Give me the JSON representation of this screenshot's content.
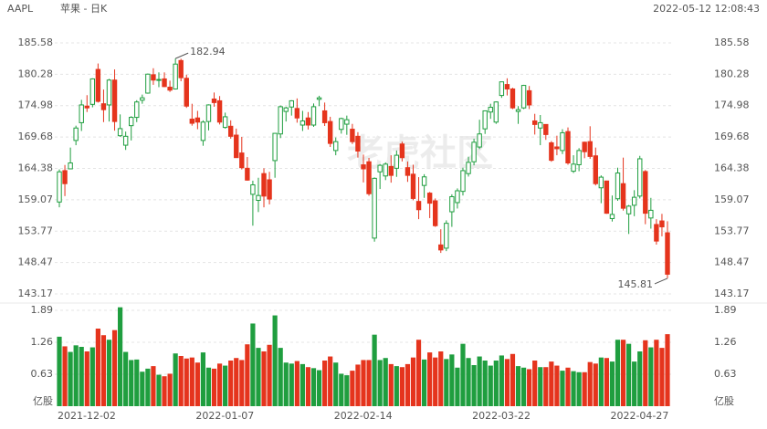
{
  "header": {
    "symbol": "AAPL",
    "name": "苹果 - 日K",
    "time": "2022-05-12 12:08:43",
    "watermark": "老虎社区"
  },
  "chart_data": [
    {
      "type": "candlestick",
      "up_color": "#1f9e3f",
      "down_color": "#e5341d",
      "grid": true,
      "ylim": [
        141.94,
        186.66
      ],
      "yticks": [
        185.58,
        180.28,
        174.98,
        169.68,
        164.38,
        159.07,
        153.77,
        148.47,
        143.17
      ],
      "open": [
        158.7,
        164.0,
        164.3,
        169.1,
        172.1,
        174.9,
        175.2,
        181.1,
        175.3,
        175.1,
        179.3,
        169.9,
        168.3,
        171.6,
        173.0,
        175.9,
        177.1,
        180.2,
        179.3,
        179.5,
        178.1,
        177.8,
        182.6,
        179.6,
        172.7,
        172.9,
        169.1,
        172.3,
        176.1,
        175.8,
        171.3,
        171.5,
        170.0,
        166.98,
        164.4,
        160.0,
        158.98,
        163.5,
        162.45,
        165.7,
        170.2,
        174.0,
        174.75,
        174.5,
        171.7,
        172.9,
        171.7,
        176.05,
        174.1,
        172.3,
        167.4,
        170.97,
        171.85,
        171.0,
        169.8,
        164.98,
        165.5,
        152.6,
        163.8,
        163.1,
        164.7,
        164.4,
        168.5,
        164.5,
        163.4,
        158.8,
        161.5,
        160.2,
        158.9,
        151.45,
        150.9,
        157.05,
        158.6,
        160.5,
        163.5,
        165.5,
        167.99,
        171.06,
        173.9,
        172.2,
        176.7,
        178.55,
        177.8,
        174.0,
        174.6,
        177.5,
        172.4,
        171.2,
        171.8,
        168.7,
        168.0,
        167.4,
        170.6,
        163.9,
        165.0,
        168.8,
        168.9,
        166.5,
        161.1,
        162.25,
        155.9,
        159.25,
        161.8,
        156.7,
        158.15,
        159.7,
        163.85,
        156.0,
        154.9,
        155.5,
        153.5
      ],
      "high": [
        164.2,
        164.96,
        167.9,
        171.6,
        175.96,
        176.75,
        179.6,
        182.1,
        177.7,
        179.5,
        181.1,
        173.5,
        170.6,
        173.2,
        175.9,
        176.85,
        180.4,
        181.3,
        180.6,
        180.6,
        179.2,
        182.94,
        182.9,
        180.2,
        175.3,
        174.1,
        172.5,
        175.2,
        177.2,
        176.6,
        173.8,
        172.5,
        171.1,
        169.7,
        166.3,
        162.3,
        162.8,
        164.4,
        163.8,
        170.35,
        175.0,
        174.8,
        175.9,
        176.2,
        174.1,
        173.9,
        175.35,
        176.65,
        175.5,
        173.1,
        169.6,
        172.95,
        173.3,
        171.9,
        170.5,
        166.7,
        166.15,
        162.85,
        165.1,
        165.4,
        166.6,
        167.4,
        168.9,
        165.55,
        165.0,
        162.9,
        163.4,
        160.4,
        159.3,
        154.1,
        155.6,
        160.0,
        161.0,
        164.5,
        166.35,
        169.4,
        172.6,
        174.1,
        175.3,
        175.7,
        179.0,
        179.6,
        178.0,
        174.9,
        178.5,
        178.3,
        173.6,
        173.4,
        171.8,
        169.0,
        169.9,
        171.0,
        171.3,
        166.6,
        167.8,
        168.9,
        171.5,
        167.9,
        163.2,
        162.3,
        159.8,
        164.5,
        166.2,
        158.2,
        160.7,
        166.5,
        164.1,
        159.4,
        155.8,
        156.7,
        155.45
      ],
      "low": [
        157.8,
        159.7,
        164.3,
        168.3,
        170.7,
        173.9,
        174.7,
        175.5,
        172.2,
        172.3,
        170.75,
        169.7,
        167.5,
        169.1,
        172.2,
        175.3,
        177.0,
        178.5,
        178.1,
        178.1,
        177.3,
        177.7,
        179.1,
        174.6,
        171.6,
        171.0,
        168.2,
        170.8,
        174.8,
        171.8,
        171.1,
        169.4,
        166.5,
        164.2,
        162.3,
        154.7,
        157.0,
        157.8,
        158.3,
        162.8,
        169.5,
        172.3,
        173.3,
        172.1,
        170.7,
        170.95,
        171.4,
        174.9,
        171.55,
        168.0,
        166.6,
        170.25,
        170.05,
        168.5,
        166.2,
        162.0,
        159.75,
        152.0,
        160.9,
        162.4,
        161.97,
        162.95,
        165.55,
        162.1,
        159.0,
        155.8,
        159.4,
        155.98,
        154.5,
        150.1,
        150.4,
        154.5,
        157.6,
        159.8,
        163.0,
        164.9,
        167.65,
        170.2,
        172.75,
        171.9,
        176.3,
        176.7,
        174.4,
        171.9,
        174.4,
        174.4,
        170.1,
        168.3,
        169.2,
        165.5,
        166.6,
        166.8,
        165.0,
        163.6,
        163.9,
        166.1,
        166.0,
        161.5,
        158.5,
        156.7,
        155.4,
        158.9,
        157.25,
        153.3,
        156.3,
        159.3,
        154.95,
        154.2,
        151.5,
        152.9,
        145.81
      ],
      "close": [
        163.8,
        161.8,
        165.3,
        171.2,
        175.1,
        174.6,
        179.5,
        175.7,
        174.3,
        179.3,
        172.3,
        171.1,
        169.8,
        173.0,
        175.6,
        176.3,
        180.3,
        179.3,
        179.4,
        178.2,
        177.6,
        182.0,
        179.7,
        174.9,
        172.0,
        172.2,
        172.2,
        175.1,
        175.5,
        172.2,
        173.1,
        169.8,
        166.2,
        164.5,
        162.4,
        161.6,
        159.8,
        159.7,
        159.2,
        170.3,
        174.8,
        174.6,
        175.8,
        172.9,
        172.4,
        171.7,
        174.8,
        176.3,
        172.1,
        168.6,
        168.9,
        172.8,
        172.6,
        168.9,
        167.3,
        164.3,
        160.1,
        162.7,
        164.9,
        165.1,
        163.2,
        166.6,
        166.2,
        163.2,
        159.3,
        157.4,
        162.95,
        158.5,
        154.7,
        150.6,
        155.1,
        159.6,
        160.6,
        164.0,
        165.4,
        168.8,
        170.2,
        174.1,
        174.7,
        175.6,
        179.0,
        177.8,
        174.6,
        174.3,
        178.4,
        175.1,
        171.8,
        172.1,
        170.1,
        165.75,
        167.7,
        170.4,
        165.3,
        165.1,
        167.4,
        167.2,
        166.4,
        161.8,
        162.9,
        156.8,
        156.6,
        163.6,
        157.65,
        158.0,
        159.5,
        166.0,
        156.8,
        157.3,
        152.1,
        154.5,
        146.5
      ]
    },
    {
      "type": "bar",
      "unit": "亿股",
      "ylim": [
        0,
        1.98
      ],
      "yticks": [
        0.63,
        1.26,
        1.89
      ],
      "categories": [
        "2021-12-02",
        null,
        null,
        null,
        null,
        null,
        null,
        null,
        null,
        null,
        null,
        null,
        null,
        null,
        null,
        null,
        null,
        null,
        null,
        null,
        null,
        null,
        null,
        null,
        null,
        "2022-01-07",
        null,
        null,
        null,
        null,
        null,
        null,
        null,
        null,
        null,
        null,
        null,
        null,
        null,
        null,
        null,
        null,
        null,
        null,
        null,
        null,
        null,
        null,
        null,
        null,
        "2022-02-14",
        null,
        null,
        null,
        null,
        null,
        null,
        null,
        null,
        null,
        null,
        null,
        null,
        null,
        null,
        null,
        null,
        null,
        null,
        null,
        null,
        null,
        null,
        null,
        null,
        "2022-03-22",
        null,
        null,
        null,
        null,
        null,
        null,
        null,
        null,
        null,
        null,
        null,
        null,
        null,
        null,
        null,
        null,
        null,
        null,
        null,
        null,
        null,
        null,
        null,
        null,
        "2022-04-27",
        null,
        null,
        null,
        null,
        null,
        null,
        null,
        null,
        null,
        null
      ],
      "values": [
        1.37,
        1.18,
        1.07,
        1.2,
        1.17,
        1.08,
        1.16,
        1.53,
        1.4,
        1.31,
        1.5,
        1.95,
        1.07,
        0.91,
        0.92,
        0.68,
        0.74,
        0.79,
        0.62,
        0.59,
        0.64,
        1.04,
        0.99,
        0.94,
        0.96,
        0.86,
        1.06,
        0.76,
        0.74,
        0.84,
        0.8,
        0.9,
        0.95,
        0.91,
        1.22,
        1.63,
        1.15,
        1.08,
        1.21,
        1.79,
        1.15,
        0.86,
        0.84,
        0.89,
        0.83,
        0.77,
        0.75,
        0.71,
        0.9,
        0.98,
        0.86,
        0.64,
        0.61,
        0.7,
        0.82,
        0.91,
        0.91,
        1.41,
        0.91,
        0.95,
        0.83,
        0.79,
        0.77,
        0.83,
        0.96,
        1.31,
        0.92,
        1.06,
        0.96,
        1.08,
        0.93,
        1.02,
        0.76,
        1.23,
        0.95,
        0.81,
        0.98,
        0.9,
        0.8,
        0.9,
        1.0,
        0.93,
        1.03,
        0.79,
        0.76,
        0.73,
        0.9,
        0.77,
        0.77,
        0.88,
        0.8,
        0.7,
        0.76,
        0.69,
        0.67,
        0.67,
        0.87,
        0.84,
        0.96,
        0.95,
        0.88,
        1.31,
        1.31,
        1.23,
        0.88,
        1.08,
        1.3,
        1.16,
        1.31,
        1.15,
        1.42
      ]
    }
  ]
}
